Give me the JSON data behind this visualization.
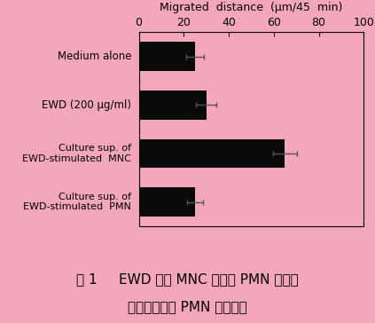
{
  "categories": [
    "Medium alone",
    "EWD (200 μg/ml)",
    "Culture sup. of\nEWD-stimulated  MNC",
    "Culture sup. of\nEWD-stimulated  PMN"
  ],
  "values": [
    25,
    30,
    65,
    25
  ],
  "errors": [
    4.0,
    4.5,
    5.5,
    3.5
  ],
  "bar_color": "#0a0a0a",
  "background_color": "#f4a7bb",
  "plot_bg_color": "#f4a7bb",
  "caption_bg_color": "#e8d5a0",
  "xlabel": "Migrated  distance  (μm/45  min)",
  "xlim": [
    0,
    100
  ],
  "xticks": [
    0,
    20,
    40,
    60,
    80,
    100
  ],
  "caption_line1": "囱 1     EWD 刷激 MNC および PMN の培養",
  "caption_line2": "上清に対する PMN の走化性",
  "xlabel_fontsize": 9,
  "label_fontsize": 8.5,
  "tick_fontsize": 9,
  "caption_fontsize": 11
}
